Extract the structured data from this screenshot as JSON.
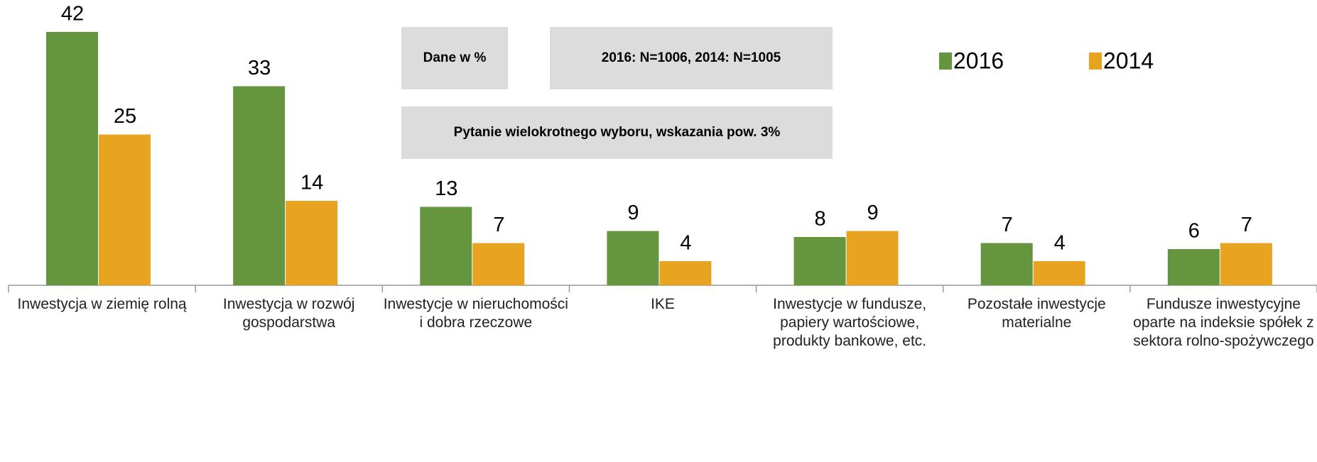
{
  "chart_data": {
    "type": "bar",
    "categories": [
      "Inwestycja w ziemię rolną",
      "Inwestycja w rozwój gospodarstwa",
      "Inwestycje w nieruchomości i dobra rzeczowe",
      "IKE",
      "Inwestycje w fundusze, papiery wartościowe, produkty bankowe, etc.",
      "Pozostałe inwestycje materialne",
      "Fundusze inwestycyjne oparte na indeksie spółek z sektora rolno-spożywczego"
    ],
    "series": [
      {
        "name": "2016",
        "color": "#65953f",
        "values": [
          42,
          33,
          13,
          9,
          8,
          7,
          6
        ]
      },
      {
        "name": "2014",
        "color": "#e8a321",
        "values": [
          25,
          14,
          7,
          4,
          9,
          4,
          7
        ]
      }
    ],
    "annotations": [
      "Dane w %",
      "2016: N=1006, 2014: N=1005",
      "Pytanie wielokrotnego wyboru, wskazania pow. 3%"
    ],
    "legend": "top-right"
  }
}
